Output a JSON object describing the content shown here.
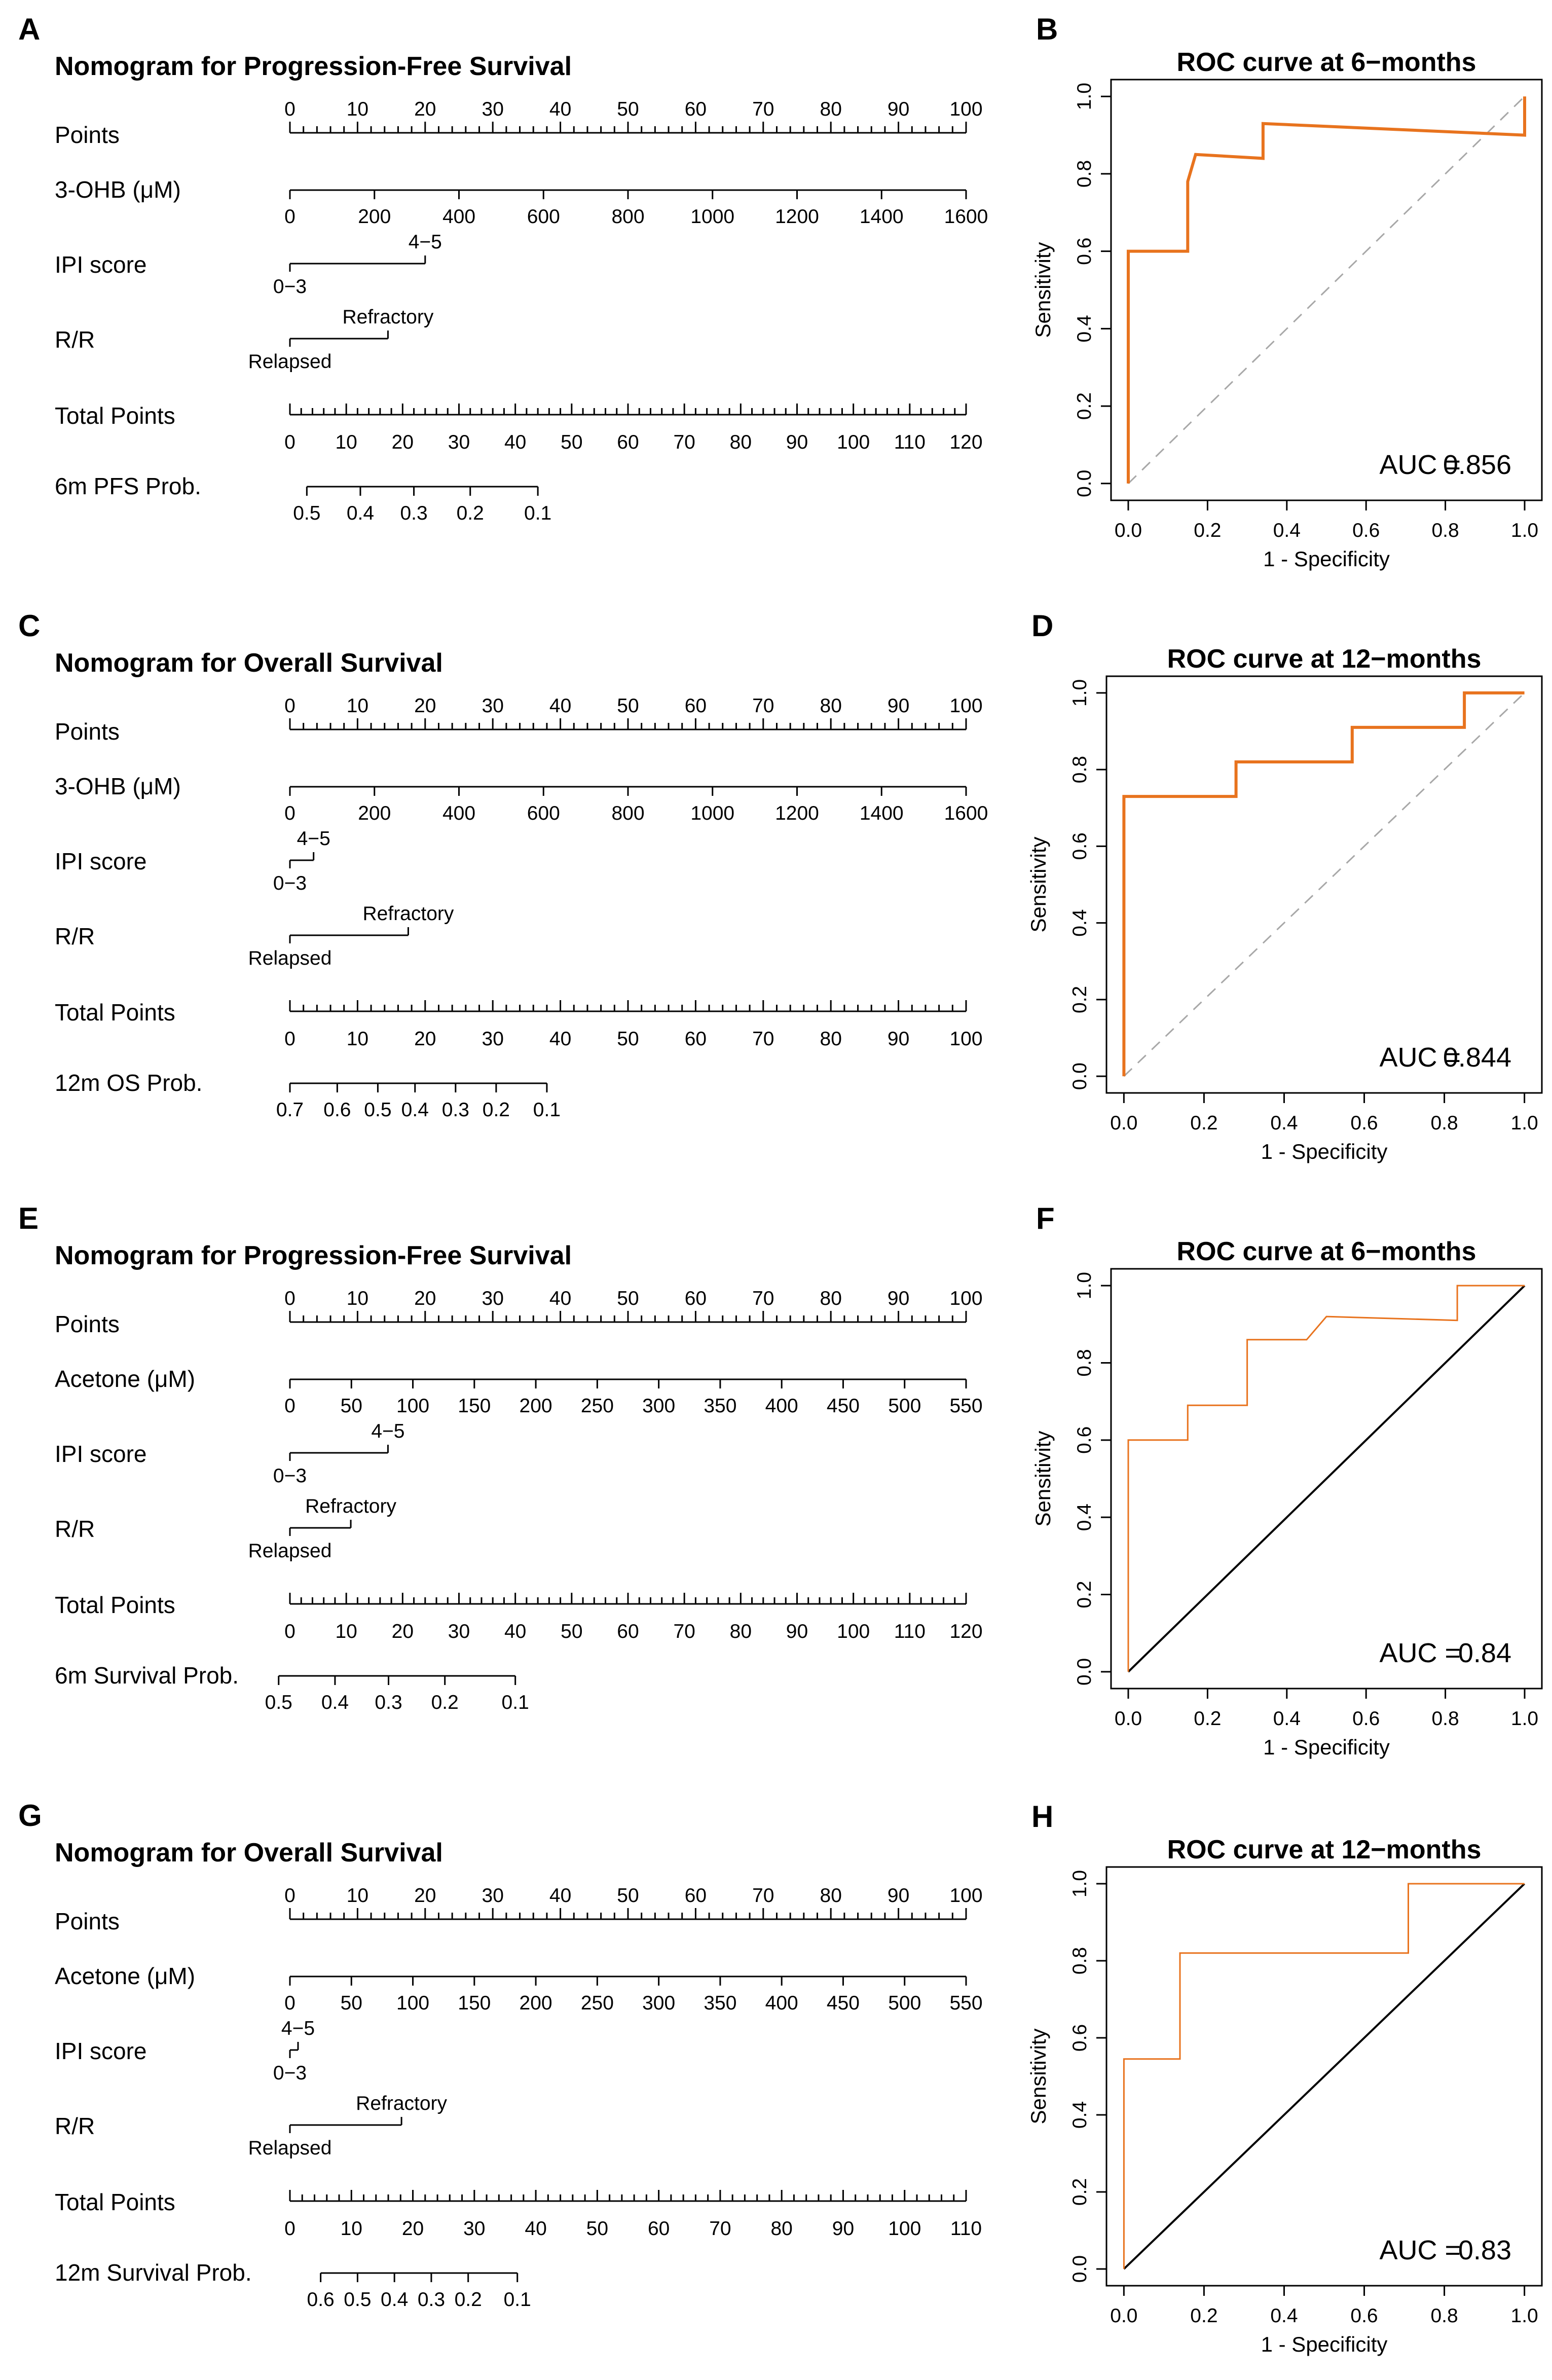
{
  "figure": {
    "background": "#ffffff"
  },
  "colors": {
    "roc_line": "#e8731e",
    "diag_dashed": "#a8a8a8",
    "diag_solid": "#000000",
    "axis": "#000000"
  },
  "axis_text": {
    "roc_xlabel": "1 - Specificity",
    "roc_ylabel": "Sensitivity"
  },
  "chart_data": [
    {
      "panel": "A",
      "type": "nomogram",
      "title": "Nomogram for Progression-Free Survival",
      "points_scale": {
        "label": "Points",
        "min": 0,
        "max": 100,
        "ticks": [
          0,
          10,
          20,
          30,
          40,
          50,
          60,
          70,
          80,
          90,
          100
        ]
      },
      "variables": [
        {
          "name": "3-OHB (μM)",
          "type": "continuous",
          "range": [
            0,
            1600
          ],
          "ticks": [
            0,
            200,
            400,
            600,
            800,
            1000,
            1200,
            1400,
            1600
          ]
        },
        {
          "name": "IPI score",
          "type": "categorical",
          "levels": [
            {
              "label": "0−3",
              "points": 0
            },
            {
              "label": "4−5",
              "points": 20
            }
          ]
        },
        {
          "name": "R/R",
          "type": "categorical",
          "levels": [
            {
              "label": "Relapsed",
              "points": 0
            },
            {
              "label": "Refractory",
              "points": 14.5
            }
          ]
        }
      ],
      "total_points": {
        "label": "Total Points",
        "ticks": [
          0,
          10,
          20,
          30,
          40,
          50,
          60,
          70,
          80,
          90,
          100,
          110,
          120
        ]
      },
      "probability": {
        "label": "6m PFS Prob.",
        "ticks": [
          {
            "label": "0.5",
            "total": 3
          },
          {
            "label": "0.4",
            "total": 12.5
          },
          {
            "label": "0.3",
            "total": 22
          },
          {
            "label": "0.2",
            "total": 32
          },
          {
            "label": "0.1",
            "total": 44
          }
        ],
        "line_total": [
          3,
          44
        ]
      }
    },
    {
      "panel": "B",
      "type": "line",
      "title": "ROC curve at 6−months",
      "xlabel": "1 - Specificity",
      "ylabel": "Sensitivity",
      "xlim": [
        0,
        1
      ],
      "ylim": [
        0,
        1
      ],
      "xticks": [
        "0.0",
        "0.2",
        "0.4",
        "0.6",
        "0.8",
        "1.0"
      ],
      "yticks": [
        "0.0",
        "0.2",
        "0.4",
        "0.6",
        "0.8",
        "1.0"
      ],
      "reference_line": "dashed",
      "line_width": "thick",
      "auc": {
        "label": "AUC =",
        "value": "0.856"
      },
      "series": [
        {
          "name": "ROC",
          "x": [
            0,
            0,
            0.15,
            0.15,
            0.17,
            0.34,
            0.34,
            1.0,
            1.0
          ],
          "y": [
            0,
            0.6,
            0.6,
            0.78,
            0.85,
            0.84,
            0.93,
            0.9,
            1.0
          ]
        }
      ]
    },
    {
      "panel": "C",
      "type": "nomogram",
      "title": "Nomogram for Overall Survival",
      "points_scale": {
        "label": "Points",
        "min": 0,
        "max": 100,
        "ticks": [
          0,
          10,
          20,
          30,
          40,
          50,
          60,
          70,
          80,
          90,
          100
        ]
      },
      "variables": [
        {
          "name": "3-OHB (μM)",
          "type": "continuous",
          "range": [
            0,
            1600
          ],
          "ticks": [
            0,
            200,
            400,
            600,
            800,
            1000,
            1200,
            1400,
            1600
          ]
        },
        {
          "name": "IPI score",
          "type": "categorical",
          "levels": [
            {
              "label": "0−3",
              "points": 0
            },
            {
              "label": "4−5",
              "points": 3.5
            }
          ]
        },
        {
          "name": "R/R",
          "type": "categorical",
          "levels": [
            {
              "label": "Relapsed",
              "points": 0
            },
            {
              "label": "Refractory",
              "points": 17.5
            }
          ]
        }
      ],
      "total_points": {
        "label": "Total Points",
        "ticks": [
          0,
          10,
          20,
          30,
          40,
          50,
          60,
          70,
          80,
          90,
          100
        ]
      },
      "probability": {
        "label": "12m OS Prob.",
        "ticks": [
          {
            "label": "0.7",
            "total": 0
          },
          {
            "label": "0.6",
            "total": 7
          },
          {
            "label": "0.5",
            "total": 13
          },
          {
            "label": "0.4",
            "total": 18.5
          },
          {
            "label": "0.3",
            "total": 24.5
          },
          {
            "label": "0.2",
            "total": 30.5
          },
          {
            "label": "0.1",
            "total": 38
          }
        ],
        "line_total": [
          0,
          38
        ]
      }
    },
    {
      "panel": "D",
      "type": "line",
      "title": "ROC curve at 12−months",
      "xlabel": "1 - Specificity",
      "ylabel": "Sensitivity",
      "xlim": [
        0,
        1
      ],
      "ylim": [
        0,
        1
      ],
      "xticks": [
        "0.0",
        "0.2",
        "0.4",
        "0.6",
        "0.8",
        "1.0"
      ],
      "yticks": [
        "0.0",
        "0.2",
        "0.4",
        "0.6",
        "0.8",
        "1.0"
      ],
      "reference_line": "dashed",
      "line_width": "thick",
      "auc": {
        "label": "AUC =",
        "value": "0.844"
      },
      "series": [
        {
          "name": "ROC",
          "x": [
            0,
            0,
            0.28,
            0.28,
            0.57,
            0.57,
            0.85,
            0.85,
            1.0
          ],
          "y": [
            0,
            0.73,
            0.73,
            0.82,
            0.82,
            0.91,
            0.91,
            1.0,
            1.0
          ]
        }
      ]
    },
    {
      "panel": "E",
      "type": "nomogram",
      "title": "Nomogram for Progression-Free Survival",
      "points_scale": {
        "label": "Points",
        "min": 0,
        "max": 100,
        "ticks": [
          0,
          10,
          20,
          30,
          40,
          50,
          60,
          70,
          80,
          90,
          100
        ]
      },
      "variables": [
        {
          "name": "Acetone (μM)",
          "type": "continuous",
          "range": [
            0,
            550
          ],
          "ticks": [
            0,
            50,
            100,
            150,
            200,
            250,
            300,
            350,
            400,
            450,
            500,
            550
          ]
        },
        {
          "name": "IPI score",
          "type": "categorical",
          "levels": [
            {
              "label": "0−3",
              "points": 0
            },
            {
              "label": "4−5",
              "points": 14.5
            }
          ]
        },
        {
          "name": "R/R",
          "type": "categorical",
          "levels": [
            {
              "label": "Relapsed",
              "points": 0
            },
            {
              "label": "Refractory",
              "points": 9
            }
          ]
        }
      ],
      "total_points": {
        "label": "Total Points",
        "ticks": [
          0,
          10,
          20,
          30,
          40,
          50,
          60,
          70,
          80,
          90,
          100,
          110,
          120
        ]
      },
      "probability": {
        "label": "6m Survival Prob.",
        "ticks": [
          {
            "label": "0.5",
            "total": -2
          },
          {
            "label": "0.4",
            "total": 8
          },
          {
            "label": "0.3",
            "total": 17.5
          },
          {
            "label": "0.2",
            "total": 27.5
          },
          {
            "label": "0.1",
            "total": 40
          }
        ],
        "line_total": [
          -2,
          40
        ]
      }
    },
    {
      "panel": "F",
      "type": "line",
      "title": "ROC curve at 6−months",
      "xlabel": "1 - Specificity",
      "ylabel": "Sensitivity",
      "xlim": [
        0,
        1
      ],
      "ylim": [
        0,
        1
      ],
      "xticks": [
        "0.0",
        "0.2",
        "0.4",
        "0.6",
        "0.8",
        "1.0"
      ],
      "yticks": [
        "0.0",
        "0.2",
        "0.4",
        "0.6",
        "0.8",
        "1.0"
      ],
      "reference_line": "solid",
      "line_width": "thin",
      "auc": {
        "label": "AUC =",
        "value": "0.84"
      },
      "series": [
        {
          "name": "ROC",
          "x": [
            0,
            0,
            0.15,
            0.15,
            0.3,
            0.3,
            0.45,
            0.5,
            0.83,
            0.83,
            1.0
          ],
          "y": [
            0,
            0.6,
            0.6,
            0.69,
            0.69,
            0.86,
            0.86,
            0.92,
            0.91,
            1.0,
            1.0
          ]
        }
      ]
    },
    {
      "panel": "G",
      "type": "nomogram",
      "title": "Nomogram for Overall Survival",
      "points_scale": {
        "label": "Points",
        "min": 0,
        "max": 100,
        "ticks": [
          0,
          10,
          20,
          30,
          40,
          50,
          60,
          70,
          80,
          90,
          100
        ]
      },
      "variables": [
        {
          "name": "Acetone (μM)",
          "type": "continuous",
          "range": [
            0,
            550
          ],
          "ticks": [
            0,
            50,
            100,
            150,
            200,
            250,
            300,
            350,
            400,
            450,
            500,
            550
          ]
        },
        {
          "name": "IPI score",
          "type": "categorical",
          "levels": [
            {
              "label": "0−3",
              "points": 0
            },
            {
              "label": "4−5",
              "points": 1.2
            }
          ]
        },
        {
          "name": "R/R",
          "type": "categorical",
          "levels": [
            {
              "label": "Relapsed",
              "points": 0
            },
            {
              "label": "Refractory",
              "points": 16.5
            }
          ]
        }
      ],
      "total_points": {
        "label": "Total Points",
        "ticks": [
          0,
          10,
          20,
          30,
          40,
          50,
          60,
          70,
          80,
          90,
          100,
          110
        ]
      },
      "probability": {
        "label": "12m Survival Prob.",
        "ticks": [
          {
            "label": "0.6",
            "total": 5
          },
          {
            "label": "0.5",
            "total": 11
          },
          {
            "label": "0.4",
            "total": 17
          },
          {
            "label": "0.3",
            "total": 23
          },
          {
            "label": "0.2",
            "total": 29
          },
          {
            "label": "0.1",
            "total": 37
          }
        ],
        "line_total": [
          5,
          37
        ]
      }
    },
    {
      "panel": "H",
      "type": "line",
      "title": "ROC curve at 12−months",
      "xlabel": "1 - Specificity",
      "ylabel": "Sensitivity",
      "xlim": [
        0,
        1
      ],
      "ylim": [
        0,
        1
      ],
      "xticks": [
        "0.0",
        "0.2",
        "0.4",
        "0.6",
        "0.8",
        "1.0"
      ],
      "yticks": [
        "0.0",
        "0.2",
        "0.4",
        "0.6",
        "0.8",
        "1.0"
      ],
      "reference_line": "solid",
      "line_width": "thin",
      "auc": {
        "label": "AUC =",
        "value": "0.83"
      },
      "series": [
        {
          "name": "ROC",
          "x": [
            0,
            0,
            0.14,
            0.14,
            0.71,
            0.71,
            1.0
          ],
          "y": [
            0,
            0.545,
            0.545,
            0.82,
            0.82,
            1.0,
            1.0
          ]
        }
      ]
    }
  ]
}
